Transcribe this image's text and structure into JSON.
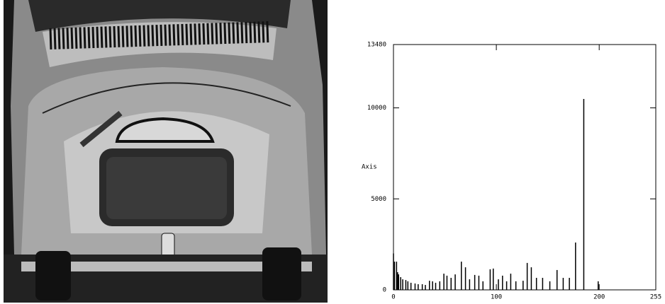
{
  "chart_data": {
    "type": "bar",
    "ylabel": "Axis",
    "x": [
      0,
      1,
      3,
      4,
      5,
      7,
      9,
      12,
      14,
      17,
      21,
      24,
      28,
      31,
      35,
      38,
      41,
      45,
      49,
      52,
      56,
      60,
      66,
      70,
      74,
      79,
      83,
      87,
      94,
      97,
      102,
      106,
      110,
      114,
      119,
      126,
      130,
      134,
      139,
      145,
      152,
      159,
      165,
      171,
      177,
      185,
      199
    ],
    "values": [
      2000,
      1550,
      1550,
      970,
      850,
      700,
      580,
      540,
      470,
      390,
      350,
      310,
      310,
      270,
      500,
      470,
      390,
      470,
      890,
      780,
      660,
      850,
      1550,
      1240,
      580,
      820,
      780,
      470,
      1130,
      1170,
      580,
      780,
      470,
      890,
      470,
      500,
      1480,
      1240,
      660,
      660,
      470,
      1090,
      660,
      660,
      2600,
      10490,
      470
    ],
    "color": "#000000",
    "xlim": [
      0,
      255
    ],
    "xticks": [
      0,
      100,
      200,
      255
    ],
    "ylim": [
      0,
      13480
    ],
    "yticks": [
      0,
      5000,
      10000,
      13480
    ]
  }
}
